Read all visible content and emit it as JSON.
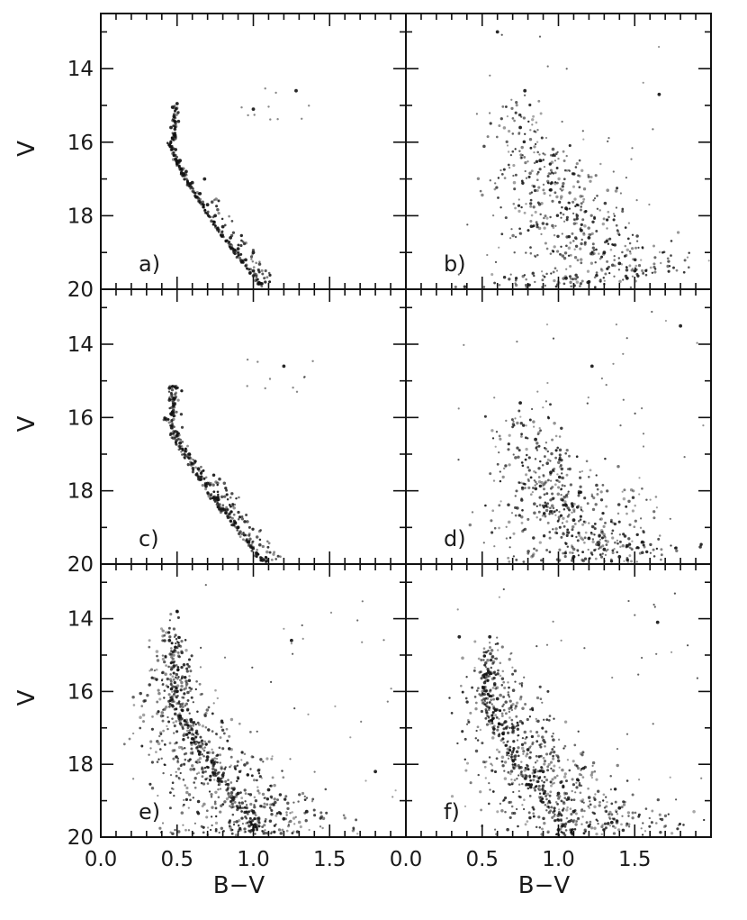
{
  "chart_data": [
    {
      "panel": "a",
      "type": "scatter",
      "label": "a)",
      "xlabel": "",
      "ylabel": "V",
      "xlim": [
        0.0,
        2.0
      ],
      "ylim": [
        20,
        12.5
      ],
      "y_inverted": true,
      "yticks": [
        "14",
        "16",
        "18",
        "20"
      ],
      "xticks": [],
      "shape": "narrow main sequence: turnoff near (0.47, 15.1), blue edge at V=16, sequence to (1.06, 20.0); few giants near (1.0-1.3, 14.6-15.2)",
      "points": [
        [
          0.47,
          15.05
        ],
        [
          0.5,
          14.95
        ],
        [
          0.48,
          15.3
        ],
        [
          0.46,
          15.6
        ],
        [
          0.47,
          15.9
        ],
        [
          0.49,
          16.2
        ],
        [
          0.52,
          16.5
        ],
        [
          0.56,
          16.8
        ],
        [
          0.6,
          17.1
        ],
        [
          0.65,
          17.4
        ],
        [
          0.68,
          17.0
        ],
        [
          0.7,
          17.7
        ],
        [
          0.75,
          18.0
        ],
        [
          0.8,
          18.3
        ],
        [
          0.85,
          18.6
        ],
        [
          0.9,
          18.9
        ],
        [
          0.95,
          19.2
        ],
        [
          1.0,
          19.5
        ],
        [
          1.05,
          19.85
        ],
        [
          1.0,
          19.0
        ],
        [
          1.28,
          14.6
        ],
        [
          1.0,
          15.1
        ]
      ]
    },
    {
      "panel": "b",
      "type": "scatter",
      "label": "b)",
      "xlabel": "",
      "ylabel": "",
      "xlim": [
        0.0,
        2.0
      ],
      "ylim": [
        20,
        12.5
      ],
      "y_inverted": true,
      "yticks": [],
      "xticks": [],
      "shape": "broad diffuse band from (0.75, 15.5) down to (1.0-1.55, 19.8); sparse field stars across panel",
      "points": [
        [
          0.78,
          14.6
        ],
        [
          0.75,
          15.6
        ],
        [
          0.88,
          16.5
        ],
        [
          0.95,
          17.3
        ],
        [
          1.05,
          17.8
        ],
        [
          1.15,
          18.4
        ],
        [
          1.2,
          18.6
        ],
        [
          1.3,
          19.0
        ],
        [
          1.4,
          19.3
        ],
        [
          1.5,
          19.5
        ],
        [
          1.05,
          19.7
        ],
        [
          1.2,
          19.8
        ],
        [
          1.45,
          19.7
        ],
        [
          1.66,
          14.7
        ],
        [
          0.6,
          13.0
        ]
      ]
    },
    {
      "panel": "c",
      "type": "scatter",
      "label": "c)",
      "xlabel": "",
      "ylabel": "V",
      "xlim": [
        0.0,
        2.0
      ],
      "ylim": [
        20,
        12.5
      ],
      "y_inverted": true,
      "yticks": [
        "14",
        "16",
        "18",
        "20"
      ],
      "xticks": [],
      "shape": "main sequence, slightly broader than a): turnoff near (0.45, 15.2) to (1.05, 19.9)",
      "points": [
        [
          0.45,
          15.2
        ],
        [
          0.48,
          15.5
        ],
        [
          0.46,
          15.9
        ],
        [
          0.5,
          16.5
        ],
        [
          0.52,
          16.7
        ],
        [
          0.58,
          17.0
        ],
        [
          0.64,
          17.4
        ],
        [
          0.7,
          17.8
        ],
        [
          0.76,
          18.2
        ],
        [
          0.82,
          18.6
        ],
        [
          0.9,
          19.0
        ],
        [
          0.97,
          19.4
        ],
        [
          1.02,
          19.7
        ],
        [
          1.06,
          19.9
        ],
        [
          1.2,
          14.6
        ]
      ]
    },
    {
      "panel": "d",
      "type": "scatter",
      "label": "d)",
      "xlabel": "",
      "ylabel": "",
      "xlim": [
        0.0,
        2.0
      ],
      "ylim": [
        20,
        12.5
      ],
      "y_inverted": true,
      "yticks": [],
      "xticks": [],
      "shape": "broad band from (0.75, 15.6) to (1.0-1.5, 19.8), densest at lower right; sparse field stars",
      "points": [
        [
          0.75,
          15.6
        ],
        [
          0.85,
          16.6
        ],
        [
          0.95,
          17.5
        ],
        [
          1.05,
          18.4
        ],
        [
          1.1,
          18.8
        ],
        [
          1.2,
          19.3
        ],
        [
          1.3,
          19.6
        ],
        [
          1.45,
          19.5
        ],
        [
          1.1,
          19.8
        ],
        [
          1.4,
          19.8
        ],
        [
          1.55,
          19.4
        ],
        [
          1.22,
          14.6
        ],
        [
          1.8,
          13.5
        ]
      ]
    },
    {
      "panel": "e",
      "type": "scatter",
      "label": "e)",
      "xlabel": "B−V",
      "ylabel": "V",
      "xlim": [
        0.0,
        2.0
      ],
      "ylim": [
        20,
        12.5
      ],
      "y_inverted": true,
      "yticks": [
        "14",
        "16",
        "18",
        "20"
      ],
      "xticks": [
        "0.0",
        "0.5",
        "1.0",
        "1.5"
      ],
      "shape": "main sequence from (0.45, 14.6) to (1.0, 19.8) plus broad field-star band to the red; dense at V 19-20",
      "points": [
        [
          0.5,
          13.8
        ],
        [
          0.45,
          14.6
        ],
        [
          0.48,
          15.3
        ],
        [
          0.5,
          16.0
        ],
        [
          0.52,
          16.7
        ],
        [
          0.6,
          17.3
        ],
        [
          0.7,
          17.8
        ],
        [
          0.8,
          18.3
        ],
        [
          0.9,
          18.8
        ],
        [
          1.0,
          19.3
        ],
        [
          1.0,
          19.8
        ],
        [
          1.2,
          19.5
        ],
        [
          1.35,
          19.3
        ],
        [
          1.1,
          18.7
        ],
        [
          1.25,
          14.6
        ],
        [
          1.8,
          18.2
        ]
      ]
    },
    {
      "panel": "f",
      "type": "scatter",
      "label": "f)",
      "xlabel": "B−V",
      "ylabel": "",
      "xlim": [
        0.0,
        2.0
      ],
      "ylim": [
        20,
        12.5
      ],
      "y_inverted": true,
      "yticks": [],
      "xticks": [
        "0.0",
        "0.5",
        "1.0",
        "1.5"
      ],
      "shape": "broad band from (0.5, 14.5) to (1.0-1.4, 19.8), dense lower centre; field stars to the red",
      "points": [
        [
          0.55,
          14.5
        ],
        [
          0.55,
          15.5
        ],
        [
          0.6,
          16.2
        ],
        [
          0.7,
          17.0
        ],
        [
          0.8,
          17.6
        ],
        [
          0.9,
          18.2
        ],
        [
          1.0,
          18.8
        ],
        [
          1.1,
          19.3
        ],
        [
          1.2,
          19.7
        ],
        [
          1.35,
          19.6
        ],
        [
          1.0,
          19.8
        ],
        [
          1.4,
          19.2
        ],
        [
          1.65,
          14.1
        ],
        [
          0.35,
          14.5
        ]
      ]
    }
  ]
}
